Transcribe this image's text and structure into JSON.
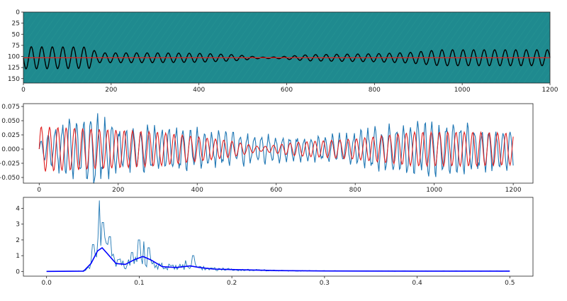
{
  "chart_data": [
    {
      "type": "heatmap",
      "background_color": "#1f8a8f",
      "xlim": [
        0,
        1200
      ],
      "ylim": [
        160,
        0
      ],
      "xticks": [
        "0",
        "200",
        "400",
        "600",
        "800",
        "1000",
        "1200"
      ],
      "yticks": [
        "0",
        "25",
        "50",
        "75",
        "100",
        "125",
        "150"
      ],
      "overlay_series": [
        {
          "color": "#000000",
          "style": "oscillation",
          "center": 103,
          "amplitude_envelope": [
            [
              0,
              50
            ],
            [
              150,
              48
            ],
            [
              170,
              22
            ],
            [
              300,
              22
            ],
            [
              400,
              20
            ],
            [
              480,
              14
            ],
            [
              540,
              3
            ],
            [
              580,
              4
            ],
            [
              650,
              14
            ],
            [
              800,
              18
            ],
            [
              880,
              24
            ],
            [
              950,
              36
            ],
            [
              1200,
              36
            ]
          ],
          "period": 24
        },
        {
          "color": "#e02020",
          "style": "flat",
          "y": 103
        }
      ]
    },
    {
      "type": "line",
      "xlim": [
        -40,
        1250
      ],
      "ylim": [
        -0.06,
        0.08
      ],
      "xticks": [
        "0",
        "200",
        "400",
        "600",
        "800",
        "1000",
        "1200"
      ],
      "yticks": [
        "−0.050",
        "−0.025",
        "0.000",
        "0.025",
        "0.050",
        "0.075"
      ],
      "series": [
        {
          "color": "#1f77b4",
          "x_range": [
            0,
            1200
          ],
          "period": 18,
          "amplitude_envelope": [
            [
              0,
              0.01
            ],
            [
              60,
              0.045
            ],
            [
              140,
              0.06
            ],
            [
              200,
              0.035
            ],
            [
              320,
              0.04
            ],
            [
              450,
              0.03
            ],
            [
              600,
              0.025
            ],
            [
              700,
              0.02
            ],
            [
              800,
              0.03
            ],
            [
              950,
              0.045
            ],
            [
              1100,
              0.04
            ],
            [
              1200,
              0.035
            ]
          ]
        },
        {
          "color": "#e02020",
          "x_range": [
            0,
            1200
          ],
          "period": 21,
          "amplitude_envelope": [
            [
              0,
              0.04
            ],
            [
              150,
              0.035
            ],
            [
              300,
              0.03
            ],
            [
              480,
              0.015
            ],
            [
              560,
              0.004
            ],
            [
              650,
              0.012
            ],
            [
              800,
              0.018
            ],
            [
              950,
              0.03
            ],
            [
              1100,
              0.03
            ],
            [
              1200,
              0.028
            ]
          ]
        }
      ]
    },
    {
      "type": "line",
      "xlim": [
        -0.025,
        0.525
      ],
      "ylim": [
        -0.3,
        4.7
      ],
      "xticks": [
        "0.0",
        "0.1",
        "0.2",
        "0.3",
        "0.4",
        "0.5"
      ],
      "yticks": [
        "0",
        "1",
        "2",
        "3",
        "4"
      ],
      "series": [
        {
          "color": "#1f77b4",
          "style": "spectrum",
          "peaks": [
            {
              "x": 0.057,
              "y": 4.5
            },
            {
              "x": 0.061,
              "y": 3.1
            },
            {
              "x": 0.05,
              "y": 1.7
            },
            {
              "x": 0.068,
              "y": 2.2
            },
            {
              "x": 0.1,
              "y": 2.0
            },
            {
              "x": 0.105,
              "y": 1.9
            },
            {
              "x": 0.11,
              "y": 1.5
            },
            {
              "x": 0.092,
              "y": 1.2
            },
            {
              "x": 0.158,
              "y": 1.0
            },
            {
              "x": 0.15,
              "y": 0.7
            }
          ]
        },
        {
          "color": "#0000ff",
          "style": "smooth",
          "points": [
            [
              0.0,
              0.0
            ],
            [
              0.04,
              0.02
            ],
            [
              0.048,
              0.5
            ],
            [
              0.055,
              1.3
            ],
            [
              0.06,
              1.5
            ],
            [
              0.066,
              1.1
            ],
            [
              0.075,
              0.5
            ],
            [
              0.085,
              0.45
            ],
            [
              0.095,
              0.75
            ],
            [
              0.104,
              0.95
            ],
            [
              0.112,
              0.75
            ],
            [
              0.125,
              0.3
            ],
            [
              0.14,
              0.25
            ],
            [
              0.155,
              0.35
            ],
            [
              0.165,
              0.25
            ],
            [
              0.18,
              0.15
            ],
            [
              0.2,
              0.12
            ],
            [
              0.25,
              0.05
            ],
            [
              0.3,
              0.03
            ],
            [
              0.4,
              0.02
            ],
            [
              0.5,
              0.02
            ]
          ]
        }
      ]
    }
  ]
}
